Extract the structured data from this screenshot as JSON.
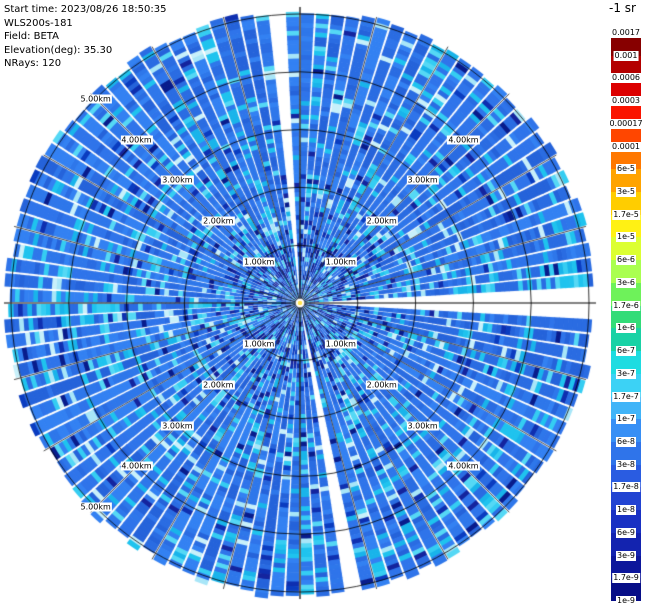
{
  "header": {
    "lines": [
      "Start time: 2023/08/26 18:50:35",
      "WLS200s-181",
      "Field: BETA",
      "Elevation(deg): 35.30",
      "NRays: 120"
    ]
  },
  "colorbar": {
    "unit_label": "-1 sr",
    "tick_labels": [
      "0.0017",
      "0.001",
      "0.0006",
      "0.0003",
      "0.00017",
      "0.0001",
      "6e-5",
      "3e-5",
      "1.7e-5",
      "1e-5",
      "6e-6",
      "3e-6",
      "1.7e-6",
      "1e-6",
      "6e-7",
      "3e-7",
      "1.7e-7",
      "1e-7",
      "6e-8",
      "3e-8",
      "1.7e-8",
      "1e-8",
      "6e-9",
      "3e-9",
      "1.7e-9",
      "1e-9"
    ],
    "segment_colors": [
      "#870000",
      "#b40000",
      "#dc0000",
      "#fa1400",
      "#ff4600",
      "#ff7800",
      "#ffa300",
      "#ffcd00",
      "#fff114",
      "#dcff32",
      "#aaff50",
      "#6ef25a",
      "#32dc78",
      "#19d2a5",
      "#1edce1",
      "#3cd2f5",
      "#41b4f8",
      "#378ff5",
      "#2f74ea",
      "#2a5ce1",
      "#2244d2",
      "#1931c3",
      "#1323af",
      "#0d179b",
      "#070e87"
    ]
  },
  "chart_data": {
    "type": "polar-ppi",
    "title": "",
    "instrument": "WLS200s-181",
    "field": "BETA",
    "start_time": "2023/08/26 18:50:35",
    "elevation_deg": 35.3,
    "n_rays": 120,
    "ray_width_deg": 3,
    "rings_km": [
      1,
      2,
      3,
      4,
      5
    ],
    "ring_labels": [
      "1.00km",
      "2.00km",
      "3.00km",
      "4.00km",
      "5.00km"
    ],
    "ring_label_layout": {
      "angles": [
        45,
        135,
        225,
        315
      ],
      "ring5_angles": [
        135,
        225
      ]
    },
    "max_range_km": 5.1,
    "value_scale": {
      "min": "1e-9",
      "max": "0.0017",
      "scale": "log",
      "units": "-1 sr"
    },
    "value_levels": [
      "0.0017",
      "0.001",
      "0.0006",
      "0.0003",
      "0.00017",
      "0.0001",
      "6e-5",
      "3e-5",
      "1.7e-5",
      "1e-5",
      "6e-6",
      "3e-6",
      "1.7e-6",
      "1e-6",
      "6e-7",
      "3e-7",
      "1.7e-7",
      "1e-7",
      "6e-8",
      "3e-8",
      "1.7e-8",
      "1e-8",
      "6e-9",
      "3e-9",
      "1.7e-9",
      "1e-9"
    ],
    "observed_value_range": [
      "1e-8",
      "1e-6"
    ],
    "dominant_value": "~1e-7",
    "center_marker_color": "#ffe34d",
    "palette": {
      "background": "#ffffff",
      "grid": "#000000",
      "base": [
        "#2e77ea",
        "#2a6ce2",
        "#3381f2",
        "#2563da",
        "#2f74ea"
      ],
      "cyan": [
        "#35cdf2",
        "#1fc3ee",
        "#55d8f5",
        "#19b4ea"
      ],
      "dark": [
        "#0e2fb0",
        "#14249e",
        "#0a3cc0",
        "#081c8c"
      ],
      "pale": [
        "#a8e6f8",
        "#c8f0fa"
      ]
    }
  }
}
